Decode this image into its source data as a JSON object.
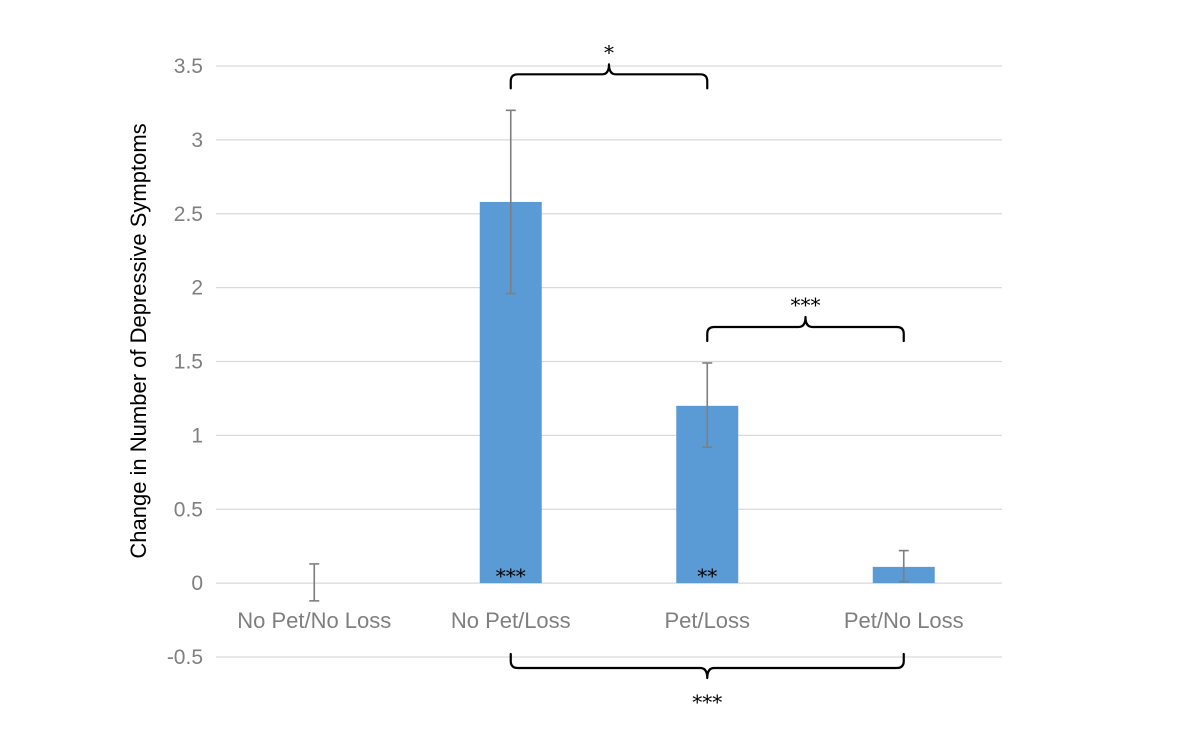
{
  "chart_data": {
    "type": "bar",
    "categories": [
      "No Pet/No Loss",
      "No Pet/Loss",
      "Pet/Loss",
      "Pet/No Loss"
    ],
    "values": [
      0.0,
      2.58,
      1.2,
      0.11
    ],
    "error_upper": [
      0.13,
      3.2,
      1.49,
      0.22
    ],
    "error_lower": [
      -0.12,
      1.96,
      0.92,
      0.01
    ],
    "bar_color": "#5b9bd5",
    "ylabel": "Change in Number of Depressive Symptoms",
    "xlabel": "",
    "ylim": [
      -0.5,
      3.5
    ],
    "yticks": [
      "-0.5",
      "0",
      "0.5",
      "1",
      "1.5",
      "2",
      "2.5",
      "3",
      "3.5"
    ],
    "ytick_values": [
      -0.5,
      0,
      0.5,
      1,
      1.5,
      2,
      2.5,
      3,
      3.5
    ],
    "grid": true,
    "bar_annotations": [
      "",
      "***",
      "**",
      ""
    ],
    "significance_brackets": [
      {
        "from": "No Pet/Loss",
        "to": "Pet/Loss",
        "label": "*",
        "position": "above"
      },
      {
        "from": "Pet/Loss",
        "to": "Pet/No Loss",
        "label": "***",
        "position": "above"
      },
      {
        "from": "No Pet/Loss",
        "to": "Pet/No Loss",
        "label": "***",
        "position": "below"
      }
    ]
  }
}
